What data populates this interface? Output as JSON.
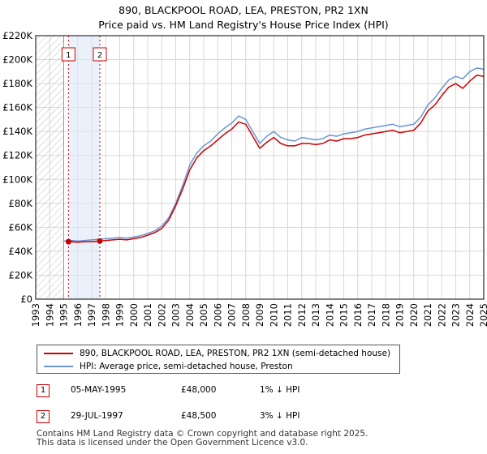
{
  "title_line1": "890, BLACKPOOL ROAD, LEA, PRESTON, PR2 1XN",
  "title_line2": "Price paid vs. HM Land Registry's House Price Index (HPI)",
  "colors": {
    "property": "#cc0000",
    "hpi": "#6a96d6",
    "marker": "#cc0000",
    "grid": "#d8d8d8",
    "hatch": "#c8c8c8"
  },
  "legend": {
    "property_label": "890, BLACKPOOL ROAD, LEA, PRESTON, PR2 1XN (semi-detached house)",
    "hpi_label": "HPI: Average price, semi-detached house, Preston"
  },
  "sales": [
    {
      "num": "1",
      "date": "05-MAY-1995",
      "price": "£48,000",
      "hpi": "1% ↓ HPI"
    },
    {
      "num": "2",
      "date": "29-JUL-1997",
      "price": "£48,500",
      "hpi": "3% ↓ HPI"
    }
  ],
  "footer_line1": "Contains HM Land Registry data © Crown copyright and database right 2025.",
  "footer_line2": "This data is licensed under the Open Government Licence v3.0.",
  "chart_data": {
    "type": "line",
    "xlim": [
      1993,
      2025
    ],
    "ylim": [
      0,
      220000
    ],
    "x_ticks": [
      "1993",
      "1994",
      "1995",
      "1996",
      "1997",
      "1998",
      "1999",
      "2000",
      "2001",
      "2002",
      "2003",
      "2004",
      "2005",
      "2006",
      "2007",
      "2008",
      "2009",
      "2010",
      "2011",
      "2012",
      "2013",
      "2014",
      "2015",
      "2016",
      "2017",
      "2018",
      "2019",
      "2020",
      "2021",
      "2022",
      "2023",
      "2024",
      "2025"
    ],
    "y_ticks": [
      "£0",
      "£20K",
      "£40K",
      "£60K",
      "£80K",
      "£100K",
      "£120K",
      "£140K",
      "£160K",
      "£180K",
      "£200K",
      "£220K"
    ],
    "y_tick_values": [
      0,
      20000,
      40000,
      60000,
      80000,
      100000,
      120000,
      140000,
      160000,
      180000,
      200000,
      220000
    ],
    "hatched_region": [
      1993,
      1995
    ],
    "sale_markers": [
      {
        "label": "1",
        "x": 1995.34,
        "y": 48000
      },
      {
        "label": "2",
        "x": 1997.58,
        "y": 48500
      }
    ],
    "series": [
      {
        "name": "HPI: Average price, semi-detached house, Preston",
        "x": [
          1995,
          1995.5,
          1996,
          1996.5,
          1997,
          1997.5,
          1998,
          1998.5,
          1999,
          1999.5,
          2000,
          2000.5,
          2001,
          2001.5,
          2002,
          2002.5,
          2003,
          2003.5,
          2004,
          2004.5,
          2005,
          2005.5,
          2006,
          2006.5,
          2007,
          2007.5,
          2008,
          2008.5,
          2009,
          2009.5,
          2010,
          2010.5,
          2011,
          2011.5,
          2012,
          2012.5,
          2013,
          2013.5,
          2014,
          2014.5,
          2015,
          2015.5,
          2016,
          2016.5,
          2017,
          2017.5,
          2018,
          2018.5,
          2019,
          2019.5,
          2020,
          2020.5,
          2021,
          2021.5,
          2022,
          2022.5,
          2023,
          2023.5,
          2024,
          2024.5,
          2025
        ],
        "values": [
          48500,
          49000,
          48500,
          49000,
          49500,
          50000,
          50500,
          51000,
          51500,
          51000,
          52000,
          53000,
          55000,
          57000,
          61000,
          68000,
          80000,
          95000,
          112000,
          122000,
          128000,
          132000,
          138000,
          143000,
          147000,
          153000,
          150000,
          140000,
          130000,
          136000,
          140000,
          135000,
          133000,
          132000,
          135000,
          134000,
          133000,
          134000,
          137000,
          136000,
          138000,
          139000,
          140000,
          142000,
          143000,
          144000,
          145000,
          146000,
          144000,
          145000,
          146000,
          152000,
          162000,
          168000,
          176000,
          183000,
          186000,
          184000,
          190000,
          193000,
          192000
        ]
      },
      {
        "name": "890, BLACKPOOL ROAD, LEA, PRESTON, PR2 1XN (semi-detached house)",
        "x": [
          1995.34,
          1995.5,
          1996,
          1996.5,
          1997,
          1997.58,
          1998,
          1998.5,
          1999,
          1999.5,
          2000,
          2000.5,
          2001,
          2001.5,
          2002,
          2002.5,
          2003,
          2003.5,
          2004,
          2004.5,
          2005,
          2005.5,
          2006,
          2006.5,
          2007,
          2007.5,
          2008,
          2008.5,
          2009,
          2009.5,
          2010,
          2010.5,
          2011,
          2011.5,
          2012,
          2012.5,
          2013,
          2013.5,
          2014,
          2014.5,
          2015,
          2015.5,
          2016,
          2016.5,
          2017,
          2017.5,
          2018,
          2018.5,
          2019,
          2019.5,
          2020,
          2020.5,
          2021,
          2021.5,
          2022,
          2022.5,
          2023,
          2023.5,
          2024,
          2024.5,
          2025
        ],
        "values": [
          48000,
          48000,
          47500,
          48000,
          48000,
          48500,
          49000,
          49500,
          50000,
          49500,
          50500,
          51500,
          53500,
          55500,
          59000,
          66000,
          78000,
          92000,
          108000,
          118000,
          124000,
          128000,
          133000,
          138000,
          142000,
          148000,
          146000,
          136000,
          126000,
          131000,
          135000,
          130000,
          128000,
          128000,
          130000,
          130000,
          129000,
          130000,
          133000,
          132000,
          134000,
          134000,
          135000,
          137000,
          138000,
          139000,
          140000,
          141000,
          139000,
          140000,
          141000,
          147000,
          157000,
          162000,
          170000,
          177000,
          180000,
          176000,
          182000,
          187000,
          186000
        ]
      }
    ]
  }
}
